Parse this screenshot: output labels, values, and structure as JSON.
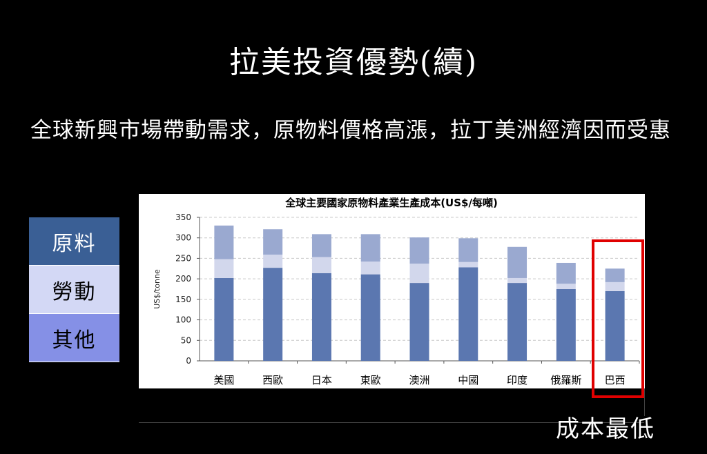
{
  "slide": {
    "title": "拉美投資優勢(續)",
    "body": "全球新興市場帶動需求，原物料價格高漲，拉丁美洲經濟因而受惠",
    "callout": "成本最低"
  },
  "legend": [
    "原料",
    "勞動",
    "其他"
  ],
  "colors": {
    "raw": "#5b77b0",
    "labor": "#d2d7ec",
    "other": "#9aa9d0",
    "highlight": "#e00000"
  },
  "chart_data": {
    "type": "bar",
    "stacked": true,
    "title": "全球主要國家原物料產業生產成本(US$/每噸)",
    "ylabel": "US$/tonne",
    "xlabel": "",
    "ylim": [
      0,
      350
    ],
    "yticks": [
      0,
      50,
      100,
      150,
      200,
      250,
      300,
      350
    ],
    "grid": true,
    "categories": [
      "美國",
      "西歐",
      "日本",
      "東歐",
      "澳洲",
      "中國",
      "印度",
      "俄羅斯",
      "巴西"
    ],
    "series": [
      {
        "values": [
          202,
          227,
          214,
          211,
          190,
          228,
          190,
          175,
          170
        ]
      },
      {
        "values": [
          46,
          32,
          39,
          31,
          47,
          13,
          12,
          13,
          22
        ]
      },
      {
        "values": [
          82,
          62,
          56,
          67,
          64,
          58,
          76,
          51,
          33
        ]
      }
    ],
    "highlighted_category": "巴西"
  }
}
